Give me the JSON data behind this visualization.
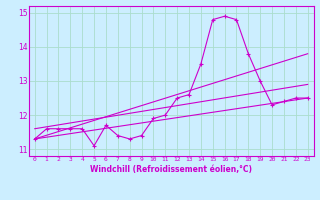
{
  "xlabel": "Windchill (Refroidissement éolien,°C)",
  "bg_color": "#cceeff",
  "grid_color": "#aaddcc",
  "line_color": "#cc00cc",
  "xlim": [
    -0.5,
    23.5
  ],
  "ylim": [
    10.8,
    15.2
  ],
  "yticks": [
    11,
    12,
    13,
    14,
    15
  ],
  "xticks": [
    0,
    1,
    2,
    3,
    4,
    5,
    6,
    7,
    8,
    9,
    10,
    11,
    12,
    13,
    14,
    15,
    16,
    17,
    18,
    19,
    20,
    21,
    22,
    23
  ],
  "series1_x": [
    0,
    1,
    2,
    3,
    4,
    5,
    6,
    7,
    8,
    9,
    10,
    11,
    12,
    13,
    14,
    15,
    16,
    17,
    18,
    19,
    20,
    21,
    22,
    23
  ],
  "series1_y": [
    11.3,
    11.6,
    11.6,
    11.6,
    11.6,
    11.1,
    11.7,
    11.4,
    11.3,
    11.4,
    11.9,
    12.0,
    12.5,
    12.6,
    13.5,
    14.8,
    14.9,
    14.8,
    13.8,
    13.0,
    12.3,
    12.4,
    12.5,
    12.5
  ],
  "series2_x": [
    0,
    23
  ],
  "series2_y": [
    11.3,
    13.8
  ],
  "series3_x": [
    0,
    23
  ],
  "series3_y": [
    11.3,
    12.5
  ],
  "series4_x": [
    0,
    23
  ],
  "series4_y": [
    11.6,
    12.9
  ]
}
